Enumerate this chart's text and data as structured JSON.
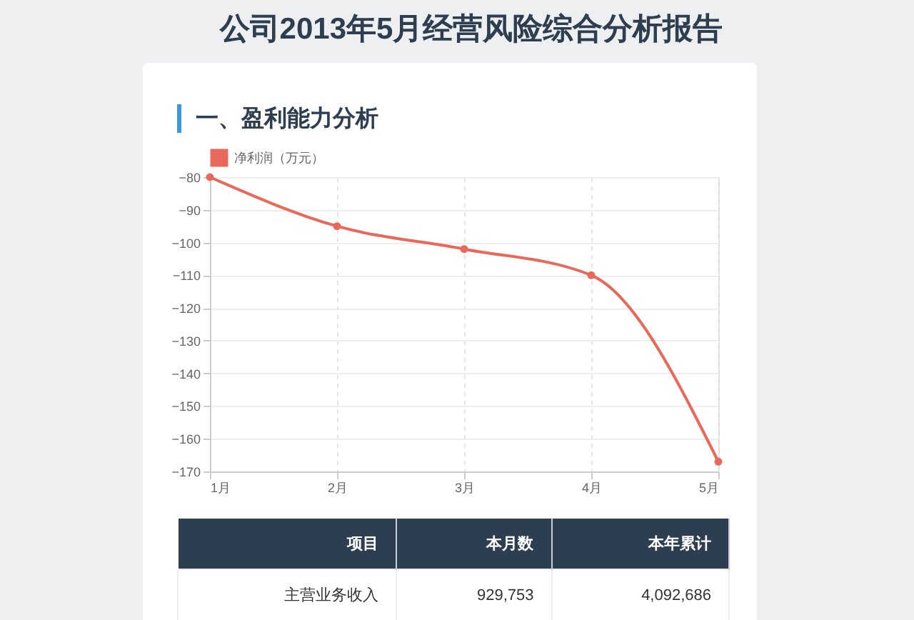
{
  "chart_data": {
    "type": "line",
    "title": "公司2013年5月经营风险综合分析报告",
    "subtitle": "一、盈利能力分析",
    "categories": [
      "1月",
      "2月",
      "3月",
      "4月",
      "5月"
    ],
    "series": [
      {
        "name": "净利润（万元）",
        "color": "#e8695a",
        "values": [
          -80,
          -95,
          -102,
          -110,
          -167
        ]
      }
    ],
    "ylim": [
      -170,
      -80
    ],
    "yticks": [
      -170,
      -160,
      -150,
      -140,
      -130,
      -120,
      -110,
      -100,
      -90,
      -80
    ],
    "grid": true,
    "legend": "top",
    "marker": "circle",
    "line_style": "solid",
    "annotations": [
      "项目",
      "本月数",
      "本年累计",
      "主营业务收入",
      "929,753",
      "4,092,686"
    ]
  }
}
